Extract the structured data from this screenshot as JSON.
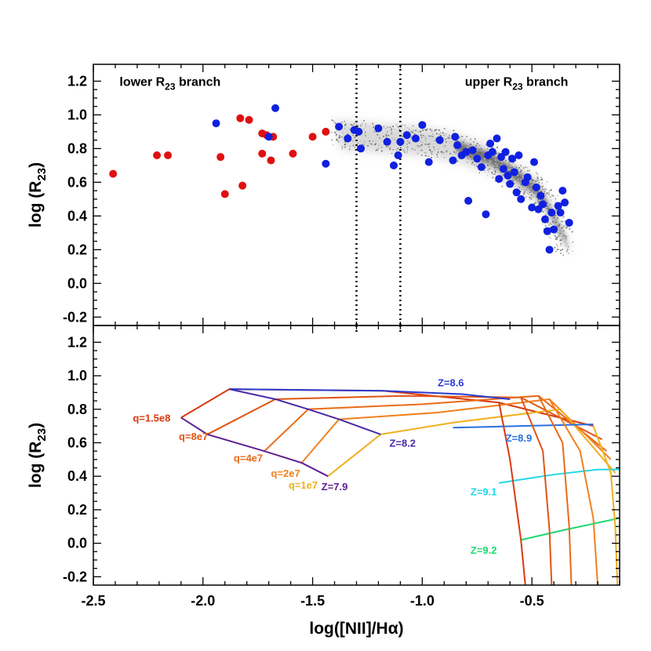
{
  "chart_data": [
    {
      "type": "scatter",
      "panel": "top",
      "xlabel": "",
      "ylabel": "log (R23)",
      "xlim": [
        -2.5,
        -0.1
      ],
      "ylim": [
        -0.25,
        1.3
      ],
      "yticks": [
        "-0.2",
        "0.0",
        "0.2",
        "0.4",
        "0.6",
        "0.8",
        "1.0",
        "1.2"
      ],
      "ytick_values": [
        -0.2,
        0.0,
        0.2,
        0.4,
        0.6,
        0.8,
        1.0,
        1.2
      ],
      "grid": false,
      "annotations": [
        {
          "text": "lower R",
          "sub": "23",
          "tail": " branch",
          "x": -2.15,
          "y": 1.2
        },
        {
          "text": "upper R",
          "sub": "23",
          "tail": " branch",
          "x": -0.57,
          "y": 1.2
        }
      ],
      "vlines": [
        -1.3,
        -1.1
      ],
      "series": [
        {
          "color": "#e01010",
          "x": [
            -2.41,
            -2.21,
            -2.16,
            -1.92,
            -1.9,
            -1.83,
            -1.82,
            -1.79,
            -1.73,
            -1.73,
            -1.71,
            -1.69,
            -1.68,
            -1.59,
            -1.5,
            -1.44
          ],
          "y": [
            0.65,
            0.76,
            0.76,
            0.75,
            0.53,
            0.98,
            0.58,
            0.97,
            0.89,
            0.77,
            0.88,
            0.73,
            0.87,
            0.77,
            0.87,
            0.9
          ]
        },
        {
          "color": "#1020e0",
          "x": [
            -1.94,
            -1.7,
            -1.67,
            -1.44,
            -1.38,
            -1.34,
            -1.31,
            -1.29,
            -1.28,
            -1.2,
            -1.16,
            -1.13,
            -1.11,
            -1.1,
            -1.07,
            -1.03,
            -1.0,
            -0.97,
            -0.92,
            -0.86,
            -0.85,
            -0.84,
            -0.82,
            -0.8,
            -0.79,
            -0.77,
            -0.75,
            -0.73,
            -0.71,
            -0.7,
            -0.69,
            -0.68,
            -0.66,
            -0.65,
            -0.64,
            -0.63,
            -0.62,
            -0.61,
            -0.6,
            -0.59,
            -0.58,
            -0.57,
            -0.56,
            -0.55,
            -0.53,
            -0.52,
            -0.5,
            -0.49,
            -0.48,
            -0.47,
            -0.46,
            -0.45,
            -0.44,
            -0.43,
            -0.42,
            -0.41,
            -0.4,
            -0.38,
            -0.37,
            -0.36,
            -0.35,
            -0.33
          ],
          "y": [
            0.95,
            0.87,
            1.04,
            0.71,
            0.93,
            0.86,
            0.91,
            0.9,
            0.8,
            0.92,
            0.84,
            0.7,
            0.76,
            0.84,
            0.88,
            0.86,
            0.94,
            0.72,
            0.85,
            0.73,
            0.87,
            0.82,
            0.76,
            0.78,
            0.49,
            0.79,
            0.74,
            0.69,
            0.41,
            0.76,
            0.83,
            0.78,
            0.86,
            0.62,
            0.75,
            0.68,
            0.78,
            0.64,
            0.59,
            0.74,
            0.66,
            0.54,
            0.76,
            0.5,
            0.6,
            0.63,
            0.45,
            0.72,
            0.57,
            0.44,
            0.52,
            0.47,
            0.38,
            0.31,
            0.2,
            0.42,
            0.32,
            0.46,
            0.42,
            0.55,
            0.48,
            0.36
          ]
        }
      ],
      "density": {
        "description": "grayscale density of background sample",
        "ridge_x": [
          -1.4,
          -1.2,
          -1.0,
          -0.85,
          -0.7,
          -0.6,
          -0.5,
          -0.45,
          -0.4,
          -0.35
        ],
        "ridge_y": [
          0.9,
          0.88,
          0.86,
          0.82,
          0.75,
          0.67,
          0.58,
          0.5,
          0.38,
          0.25
        ]
      }
    },
    {
      "type": "line",
      "panel": "bottom",
      "xlabel": "log([NII]/Hα)",
      "ylabel": "log (R23)",
      "xlim": [
        -2.5,
        -0.1
      ],
      "ylim": [
        -0.25,
        1.3
      ],
      "xticks": [
        "-2.5",
        "-2.0",
        "-1.5",
        "-1.0",
        "-0.5"
      ],
      "xtick_values": [
        -2.5,
        -2.0,
        -1.5,
        -1.0,
        -0.5
      ],
      "yticks": [
        "-0.2",
        "0.0",
        "0.2",
        "0.4",
        "0.6",
        "0.8",
        "1.0",
        "1.2"
      ],
      "ytick_values": [
        -0.2,
        0.0,
        0.2,
        0.4,
        0.6,
        0.8,
        1.0,
        1.2
      ],
      "grid": false,
      "q_lines": [
        {
          "label": "q=1.5e8",
          "color": "#d83a10",
          "x": [
            -2.1,
            -1.88,
            -1.18,
            -0.65,
            -0.22
          ],
          "y": [
            0.75,
            0.92,
            0.91,
            0.84,
            0.7
          ]
        },
        {
          "label": "q=8e7",
          "color": "#e05515",
          "x": [
            -1.98,
            -1.67,
            -1.08,
            -0.55,
            -0.18
          ],
          "y": [
            0.65,
            0.86,
            0.88,
            0.87,
            0.62
          ]
        },
        {
          "label": "q=4e7",
          "color": "#ea6a18",
          "x": [
            -1.72,
            -1.52,
            -1.0,
            -0.47,
            -0.16
          ],
          "y": [
            0.55,
            0.8,
            0.83,
            0.88,
            0.55
          ]
        },
        {
          "label": "q=2e7",
          "color": "#f08020",
          "x": [
            -1.55,
            -1.38,
            -0.93,
            -0.42,
            -0.14
          ],
          "y": [
            0.48,
            0.74,
            0.78,
            0.86,
            0.5
          ]
        },
        {
          "label": "q=1e7",
          "color": "#f0b020",
          "x": [
            -1.43,
            -1.19,
            -0.86,
            -0.37,
            -0.12
          ],
          "y": [
            0.4,
            0.65,
            0.72,
            0.8,
            0.42
          ]
        }
      ],
      "z_lines": [
        {
          "label": "Z=7.9",
          "color": "#602090",
          "x": [
            -2.1,
            -1.98,
            -1.72,
            -1.55,
            -1.43
          ],
          "y": [
            0.75,
            0.65,
            0.55,
            0.48,
            0.4
          ]
        },
        {
          "label": "Z=8.2",
          "color": "#4a2aa8",
          "x": [
            -1.88,
            -1.67,
            -1.52,
            -1.38,
            -1.19
          ],
          "y": [
            0.92,
            0.86,
            0.8,
            0.74,
            0.65
          ]
        },
        {
          "label": "Z=8.6",
          "color": "#2a3ad0",
          "x": [
            -1.88,
            -1.18,
            -0.82,
            -0.6
          ],
          "y": [
            0.92,
            0.91,
            0.89,
            0.86
          ]
        },
        {
          "label": "Z=8.9",
          "color": "#2a70e0",
          "x": [
            -0.86,
            -0.55,
            -0.22
          ],
          "y": [
            0.69,
            0.7,
            0.71
          ]
        },
        {
          "label": "Z=9.1",
          "color": "#20d8e8",
          "x": [
            -0.65,
            -0.4,
            -0.2,
            -0.1
          ],
          "y": [
            0.36,
            0.41,
            0.44,
            0.44
          ]
        },
        {
          "label": "Z=9.2",
          "color": "#20d870",
          "x": [
            -0.55,
            -0.35,
            -0.1
          ],
          "y": [
            0.02,
            0.08,
            0.15
          ]
        }
      ],
      "q_label_positions": [
        {
          "label": "q=1.5e8",
          "x": -2.32,
          "y": 0.75
        },
        {
          "label": "q=8e7",
          "x": -2.11,
          "y": 0.64
        },
        {
          "label": "q=4e7",
          "x": -1.86,
          "y": 0.51
        },
        {
          "label": "q=2e7",
          "x": -1.69,
          "y": 0.42
        },
        {
          "label": "q=1e7",
          "x": -1.61,
          "y": 0.35
        }
      ],
      "z_label_positions": [
        {
          "label": "Z=7.9",
          "x": -1.46,
          "y": 0.34
        },
        {
          "label": "Z=8.2",
          "x": -1.15,
          "y": 0.6
        },
        {
          "label": "Z=8.6",
          "x": -0.93,
          "y": 0.96
        },
        {
          "label": "Z=8.9",
          "x": -0.62,
          "y": 0.63
        },
        {
          "label": "Z=9.1",
          "x": -0.78,
          "y": 0.31
        },
        {
          "label": "Z=9.2",
          "x": -0.78,
          "y": -0.04
        }
      ]
    }
  ]
}
